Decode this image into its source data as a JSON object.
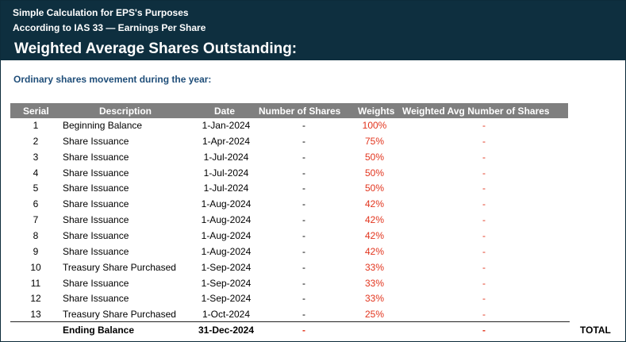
{
  "header": {
    "subtitle_1": "Simple Calculation for EPS's Purposes",
    "subtitle_2": "According to IAS 33 — Earnings Per Share",
    "title": "Weighted Average Shares Outstanding:"
  },
  "section_label": "Ordinary shares movement during the year:",
  "table": {
    "headers": [
      "Serial",
      "Description",
      "Date",
      "Number of Shares",
      "Weights",
      "Weighted Avg Number of Shares"
    ],
    "rows": [
      {
        "serial": "1",
        "description": "Beginning Balance",
        "date": "1-Jan-2024",
        "shares": "-",
        "weight": "100%",
        "weighted": "-"
      },
      {
        "serial": "2",
        "description": "Share Issuance",
        "date": "1-Apr-2024",
        "shares": "-",
        "weight": "75%",
        "weighted": "-"
      },
      {
        "serial": "3",
        "description": "Share Issuance",
        "date": "1-Jul-2024",
        "shares": "-",
        "weight": "50%",
        "weighted": "-"
      },
      {
        "serial": "4",
        "description": "Share Issuance",
        "date": "1-Jul-2024",
        "shares": "-",
        "weight": "50%",
        "weighted": "-"
      },
      {
        "serial": "5",
        "description": "Share Issuance",
        "date": "1-Jul-2024",
        "shares": "-",
        "weight": "50%",
        "weighted": "-"
      },
      {
        "serial": "6",
        "description": "Share Issuance",
        "date": "1-Aug-2024",
        "shares": "-",
        "weight": "42%",
        "weighted": "-"
      },
      {
        "serial": "7",
        "description": "Share Issuance",
        "date": "1-Aug-2024",
        "shares": "-",
        "weight": "42%",
        "weighted": "-"
      },
      {
        "serial": "8",
        "description": "Share Issuance",
        "date": "1-Aug-2024",
        "shares": "-",
        "weight": "42%",
        "weighted": "-"
      },
      {
        "serial": "9",
        "description": "Share Issuance",
        "date": "1-Aug-2024",
        "shares": "-",
        "weight": "42%",
        "weighted": "-"
      },
      {
        "serial": "10",
        "description": "Treasury Share Purchased",
        "date": "1-Sep-2024",
        "shares": "-",
        "weight": "33%",
        "weighted": "-"
      },
      {
        "serial": "11",
        "description": "Share Issuance",
        "date": "1-Sep-2024",
        "shares": "-",
        "weight": "33%",
        "weighted": "-"
      },
      {
        "serial": "12",
        "description": "Share Issuance",
        "date": "1-Sep-2024",
        "shares": "-",
        "weight": "33%",
        "weighted": "-"
      },
      {
        "serial": "13",
        "description": "Treasury Share Purchased",
        "date": "1-Oct-2024",
        "shares": "-",
        "weight": "25%",
        "weighted": "-"
      }
    ],
    "ending": {
      "description": "Ending Balance",
      "date": "31-Dec-2024",
      "shares": "-",
      "weighted": "-",
      "total_label": "TOTAL"
    }
  },
  "colors": {
    "header_bg": "#0e2f3f",
    "table_header_bg": "#7f7f7f",
    "accent_red": "#e2341d",
    "section_blue": "#1f4e79"
  }
}
